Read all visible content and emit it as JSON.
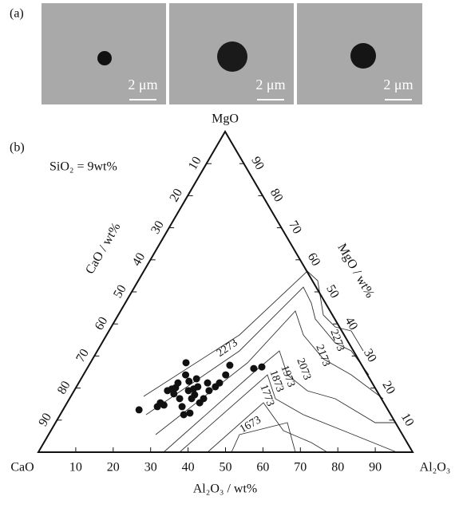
{
  "panel_a": {
    "label": "(a)",
    "scale_labels": [
      "2 μm",
      "2 μm",
      "2 μm"
    ]
  },
  "chart_data": {
    "type": "ternary",
    "panel_label": "(b)",
    "subtitle": "SiO₂ = 9wt%",
    "vertices": {
      "top": "MgO",
      "left": "CaO",
      "right": "Al₂O₃"
    },
    "bottom_axis_label": "Al₂O₃ / wt%",
    "left_axis_label": "CaO / wt%",
    "right_axis_label": "MgO / wt%",
    "aticks": [
      10,
      20,
      30,
      40,
      50,
      60,
      70,
      80,
      90
    ],
    "cticks": [
      10,
      20,
      30,
      40,
      50,
      60,
      70,
      80,
      90
    ],
    "mticks": [
      10,
      20,
      30,
      40,
      50,
      60,
      70,
      80,
      90
    ],
    "color": "#111111",
    "series": [
      {
        "name": "Al₂O₃",
        "values": [
          20.3,
          24.7,
          24.9,
          26.2,
          24.9,
          25.8,
          27.1,
          26.6,
          26.5,
          29.4,
          31.3,
          25.5,
          27.3,
          30.5,
          29.2,
          32.6,
          31.6,
          32.8,
          32.4,
          35.4,
          30.8,
          35.8,
          34.4,
          36.0,
          37.1,
          37.6,
          38.0,
          37.6,
          44.5,
          46.4,
          33.0,
          34.4
        ]
      },
      {
        "name": "MgO",
        "values": [
          13.2,
          14.2,
          15.4,
          14.7,
          19.2,
          19.7,
          18.2,
          20.1,
          21.6,
          16.7,
          14.2,
          27.9,
          24.1,
          19.2,
          22.1,
          16.7,
          19.7,
          17.9,
          20.4,
          15.4,
          22.9,
          16.7,
          21.6,
          19.2,
          20.4,
          21.6,
          24.1,
          27.1,
          26.1,
          26.6,
          11.7,
          12.2
        ]
      }
    ],
    "isotherm_labels": [
      "2273",
      "2273",
      "2173",
      "2073",
      "1973",
      "1873",
      "1773",
      "1673"
    ]
  }
}
